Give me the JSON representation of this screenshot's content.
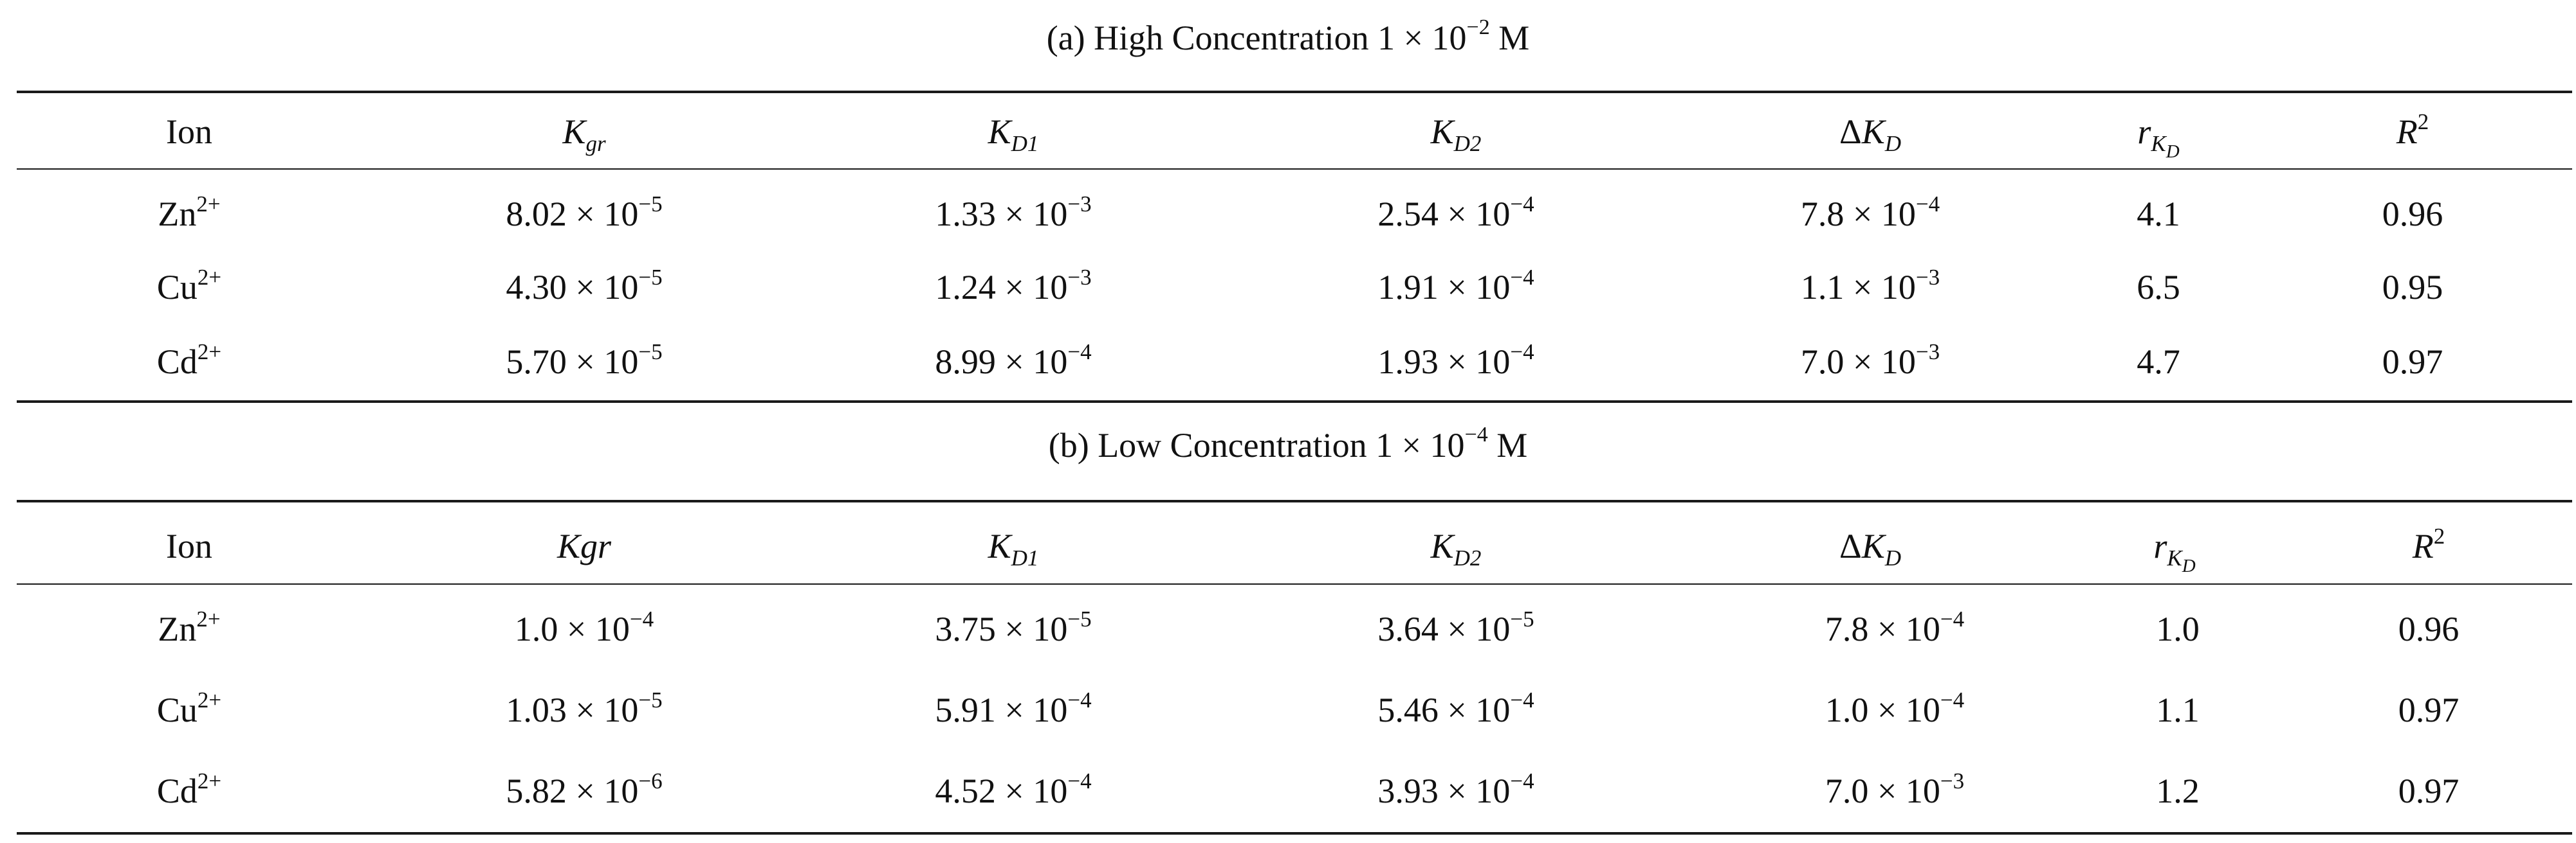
{
  "sections": [
    {
      "caption": {
        "prefix": "(a) High Concentration 1 × 10",
        "exp": "−2",
        "suffix": " M"
      },
      "header": {
        "ion": "Ion",
        "kgr": {
          "base": "K",
          "sub": "gr"
        },
        "kd1": {
          "base": "K",
          "sub": "D1"
        },
        "kd2": {
          "base": "K",
          "sub": "D2"
        },
        "dkd": {
          "delta": "Δ",
          "base": "K",
          "sub": "D"
        },
        "rkd": {
          "base": "r",
          "sub": "K",
          "subsub": "D"
        },
        "r2": {
          "base": "R",
          "exp": "2"
        }
      },
      "rows": [
        {
          "ion": {
            "base": "Zn",
            "charge": "2+"
          },
          "kgr": {
            "m": "8.02 × 10",
            "e": "−5"
          },
          "kd1": {
            "m": "1.33 × 10",
            "e": "−3"
          },
          "kd2": {
            "m": "2.54 × 10",
            "e": "−4"
          },
          "dkd": {
            "m": "7.8 × 10",
            "e": "−4"
          },
          "rkd": "4.1",
          "r2": "0.96"
        },
        {
          "ion": {
            "base": "Cu",
            "charge": "2+"
          },
          "kgr": {
            "m": "4.30 × 10",
            "e": "−5"
          },
          "kd1": {
            "m": "1.24 × 10",
            "e": "−3"
          },
          "kd2": {
            "m": "1.91 × 10",
            "e": "−4"
          },
          "dkd": {
            "m": "1.1 × 10",
            "e": "−3"
          },
          "rkd": "6.5",
          "r2": "0.95"
        },
        {
          "ion": {
            "base": "Cd",
            "charge": "2+"
          },
          "kgr": {
            "m": "5.70 × 10",
            "e": "−5"
          },
          "kd1": {
            "m": "8.99 × 10",
            "e": "−4"
          },
          "kd2": {
            "m": "1.93 × 10",
            "e": "−4"
          },
          "dkd": {
            "m": "7.0 × 10",
            "e": "−3"
          },
          "rkd": "4.7",
          "r2": "0.97"
        }
      ]
    },
    {
      "caption": {
        "prefix": "(b) Low Concentration 1 × 10",
        "exp": "−4",
        "suffix": " M"
      },
      "header": {
        "ion": "Ion",
        "kgr": {
          "base": "Kgr",
          "sub": ""
        },
        "kd1": {
          "base": "K",
          "sub": "D1"
        },
        "kd2": {
          "base": "K",
          "sub": "D2"
        },
        "dkd": {
          "delta": "Δ",
          "base": "K",
          "sub": "D"
        },
        "rkd": {
          "base": "r",
          "sub": "K",
          "subsub": "D"
        },
        "r2": {
          "base": "R",
          "exp": "2"
        }
      },
      "rows": [
        {
          "ion": {
            "base": "Zn",
            "charge": "2+"
          },
          "kgr": {
            "m": "1.0 × 10",
            "e": "−4"
          },
          "kd1": {
            "m": "3.75 × 10",
            "e": "−5"
          },
          "kd2": {
            "m": "3.64 × 10",
            "e": "−5"
          },
          "dkd": {
            "m": "7.8 × 10",
            "e": "−4"
          },
          "rkd": "1.0",
          "r2": "0.96"
        },
        {
          "ion": {
            "base": "Cu",
            "charge": "2+"
          },
          "kgr": {
            "m": "1.03 × 10",
            "e": "−5"
          },
          "kd1": {
            "m": "5.91 × 10",
            "e": "−4"
          },
          "kd2": {
            "m": "5.46 × 10",
            "e": "−4"
          },
          "dkd": {
            "m": "1.0 × 10",
            "e": "−4"
          },
          "rkd": "1.1",
          "r2": "0.97"
        },
        {
          "ion": {
            "base": "Cd",
            "charge": "2+"
          },
          "kgr": {
            "m": "5.82 × 10",
            "e": "−6"
          },
          "kd1": {
            "m": "4.52 × 10",
            "e": "−4"
          },
          "kd2": {
            "m": "3.93 × 10",
            "e": "−4"
          },
          "dkd": {
            "m": "7.0 × 10",
            "e": "−3"
          },
          "rkd": "1.2",
          "r2": "0.97"
        }
      ]
    }
  ]
}
